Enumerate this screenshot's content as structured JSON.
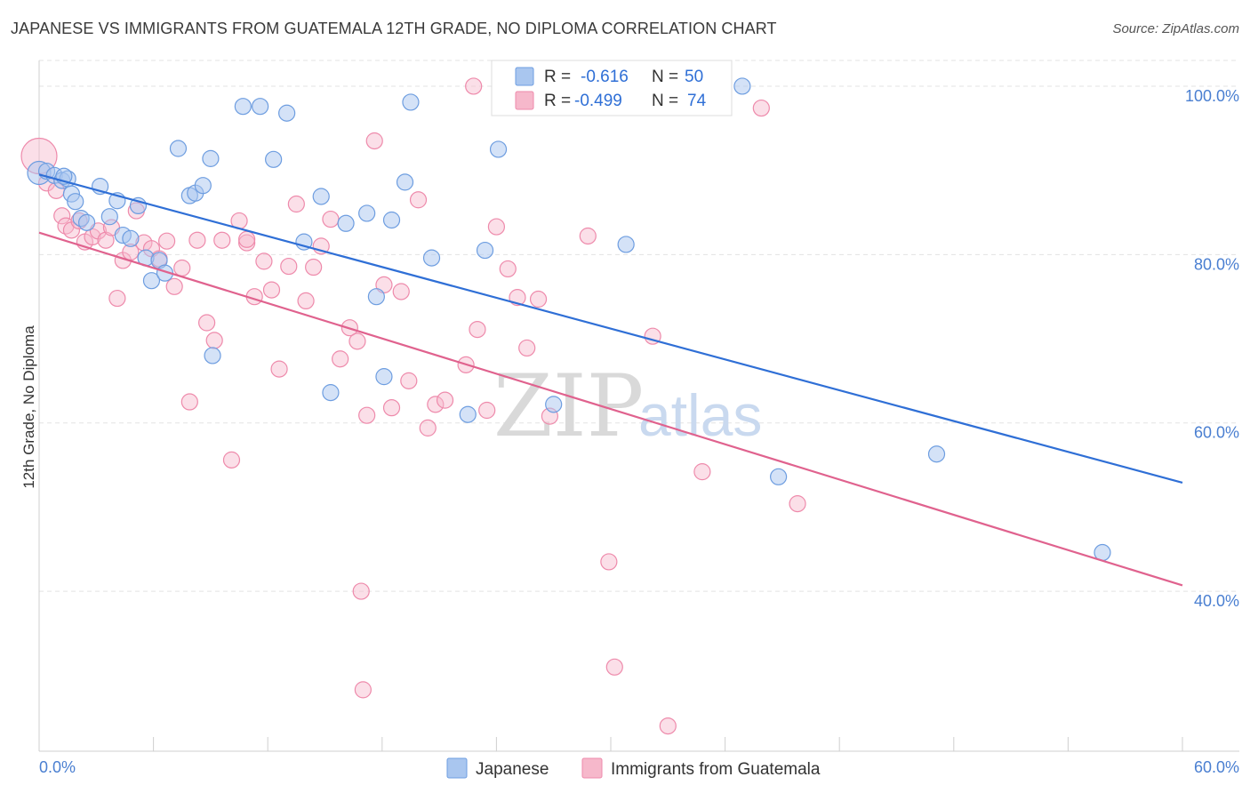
{
  "title": "JAPANESE VS IMMIGRANTS FROM GUATEMALA 12TH GRADE, NO DIPLOMA CORRELATION CHART",
  "source": "Source: ZipAtlas.com",
  "watermark": {
    "zip": "ZIP",
    "atlas": "atlas"
  },
  "colors": {
    "japanese_fill": "#a9c6ef",
    "japanese_stroke": "#6d9de0",
    "japanese_line": "#2f6fd6",
    "guatemala_fill": "#f6b8cb",
    "guatemala_stroke": "#ee8aab",
    "guatemala_line": "#e0628e",
    "grid": "#e3e3e3",
    "tick_label": "#4a7fd1"
  },
  "legend": {
    "items": [
      {
        "r_label": "R =",
        "r_value": "-0.616",
        "n_label": "N =",
        "n_value": "50"
      },
      {
        "r_label": "R =",
        "r_value": "-0.499",
        "n_label": "N =",
        "n_value": "74"
      }
    ]
  },
  "chart_data": {
    "type": "scatter",
    "title": "JAPANESE VS IMMIGRANTS FROM GUATEMALA 12TH GRADE, NO DIPLOMA CORRELATION CHART",
    "xlabel": "",
    "ylabel": "12th Grade, No Diploma",
    "xlim": [
      0,
      60
    ],
    "ylim": [
      21,
      102
    ],
    "x_tick_labels": [
      "0.0%",
      "60.0%"
    ],
    "y_ticks": [
      40,
      60,
      80,
      100
    ],
    "y_tick_labels": [
      "40.0%",
      "60.0%",
      "80.0%",
      "100.0%"
    ],
    "grid": true,
    "legend_position": "top-center",
    "series": [
      {
        "name": "Japanese",
        "r": -0.616,
        "n": 50,
        "trend": {
          "x": [
            0,
            60
          ],
          "y": [
            89.5,
            52.9
          ]
        },
        "points": [
          [
            0.0,
            89.7
          ],
          [
            0.4,
            89.9
          ],
          [
            0.8,
            89.4
          ],
          [
            1.2,
            88.8
          ],
          [
            1.5,
            89.0
          ],
          [
            1.7,
            87.2
          ],
          [
            1.9,
            86.3
          ],
          [
            2.2,
            84.3
          ],
          [
            2.5,
            83.8
          ],
          [
            3.2,
            88.1
          ],
          [
            3.7,
            84.5
          ],
          [
            4.1,
            86.4
          ],
          [
            4.4,
            82.3
          ],
          [
            4.8,
            81.9
          ],
          [
            5.2,
            85.8
          ],
          [
            5.6,
            79.6
          ],
          [
            5.9,
            76.9
          ],
          [
            6.3,
            79.3
          ],
          [
            6.6,
            77.8
          ],
          [
            7.3,
            92.6
          ],
          [
            7.9,
            87.0
          ],
          [
            8.2,
            87.3
          ],
          [
            8.6,
            88.2
          ],
          [
            9.1,
            68.0
          ],
          [
            10.7,
            97.6
          ],
          [
            11.6,
            97.6
          ],
          [
            12.3,
            91.3
          ],
          [
            13.0,
            96.8
          ],
          [
            13.9,
            81.5
          ],
          [
            14.8,
            86.9
          ],
          [
            15.3,
            63.6
          ],
          [
            16.1,
            83.7
          ],
          [
            17.2,
            84.9
          ],
          [
            17.7,
            75.0
          ],
          [
            18.1,
            65.5
          ],
          [
            18.5,
            84.1
          ],
          [
            19.2,
            88.6
          ],
          [
            20.6,
            79.6
          ],
          [
            24.1,
            92.5
          ],
          [
            19.5,
            98.1
          ],
          [
            22.5,
            61.0
          ],
          [
            23.4,
            80.5
          ],
          [
            27.0,
            62.2
          ],
          [
            30.8,
            81.2
          ],
          [
            36.9,
            100.0
          ],
          [
            38.8,
            53.6
          ],
          [
            47.1,
            56.3
          ],
          [
            55.8,
            44.6
          ],
          [
            9.0,
            91.4
          ],
          [
            1.3,
            89.3
          ]
        ]
      },
      {
        "name": "Immigrants from Guatemala",
        "r": -0.499,
        "n": 74,
        "trend": {
          "x": [
            0,
            60
          ],
          "y": [
            82.6,
            40.7
          ]
        },
        "points": [
          [
            0.0,
            91.7
          ],
          [
            0.4,
            88.5
          ],
          [
            0.9,
            87.6
          ],
          [
            1.2,
            84.6
          ],
          [
            1.4,
            83.4
          ],
          [
            1.7,
            82.9
          ],
          [
            2.1,
            84.0
          ],
          [
            2.4,
            81.5
          ],
          [
            2.8,
            82.1
          ],
          [
            3.1,
            82.8
          ],
          [
            3.5,
            81.7
          ],
          [
            3.8,
            83.2
          ],
          [
            4.1,
            74.8
          ],
          [
            4.4,
            79.3
          ],
          [
            4.8,
            80.3
          ],
          [
            5.1,
            85.2
          ],
          [
            5.5,
            81.4
          ],
          [
            5.9,
            80.7
          ],
          [
            6.3,
            79.5
          ],
          [
            6.7,
            81.6
          ],
          [
            7.1,
            76.2
          ],
          [
            7.5,
            78.4
          ],
          [
            7.9,
            62.5
          ],
          [
            8.3,
            81.7
          ],
          [
            8.8,
            71.9
          ],
          [
            9.2,
            69.8
          ],
          [
            9.6,
            81.7
          ],
          [
            10.1,
            55.6
          ],
          [
            10.5,
            84.0
          ],
          [
            10.9,
            81.4
          ],
          [
            11.3,
            75.0
          ],
          [
            11.8,
            79.2
          ],
          [
            12.2,
            75.8
          ],
          [
            12.6,
            66.4
          ],
          [
            13.1,
            78.6
          ],
          [
            13.5,
            86.0
          ],
          [
            14.0,
            74.5
          ],
          [
            14.4,
            78.5
          ],
          [
            14.8,
            81.0
          ],
          [
            15.3,
            84.2
          ],
          [
            15.8,
            67.6
          ],
          [
            16.3,
            71.3
          ],
          [
            16.7,
            69.7
          ],
          [
            17.2,
            60.9
          ],
          [
            17.6,
            93.5
          ],
          [
            18.1,
            76.4
          ],
          [
            18.5,
            61.8
          ],
          [
            19.0,
            75.6
          ],
          [
            19.4,
            65.0
          ],
          [
            19.9,
            86.5
          ],
          [
            20.4,
            59.4
          ],
          [
            20.8,
            62.2
          ],
          [
            21.3,
            62.7
          ],
          [
            22.4,
            66.9
          ],
          [
            23.0,
            71.1
          ],
          [
            23.5,
            61.5
          ],
          [
            24.0,
            83.3
          ],
          [
            24.6,
            78.3
          ],
          [
            25.1,
            74.9
          ],
          [
            25.6,
            68.9
          ],
          [
            26.2,
            74.7
          ],
          [
            26.8,
            60.8
          ],
          [
            28.8,
            82.2
          ],
          [
            29.9,
            43.5
          ],
          [
            30.2,
            31.0
          ],
          [
            32.2,
            70.3
          ],
          [
            33.0,
            24.0
          ],
          [
            34.8,
            54.2
          ],
          [
            37.9,
            97.4
          ],
          [
            22.8,
            100.0
          ],
          [
            16.9,
            40.0
          ],
          [
            17.0,
            28.3
          ],
          [
            39.8,
            50.4
          ],
          [
            10.9,
            81.8
          ]
        ]
      }
    ]
  },
  "bottom_legend": [
    {
      "label": "Japanese"
    },
    {
      "label": "Immigrants from Guatemala"
    }
  ]
}
